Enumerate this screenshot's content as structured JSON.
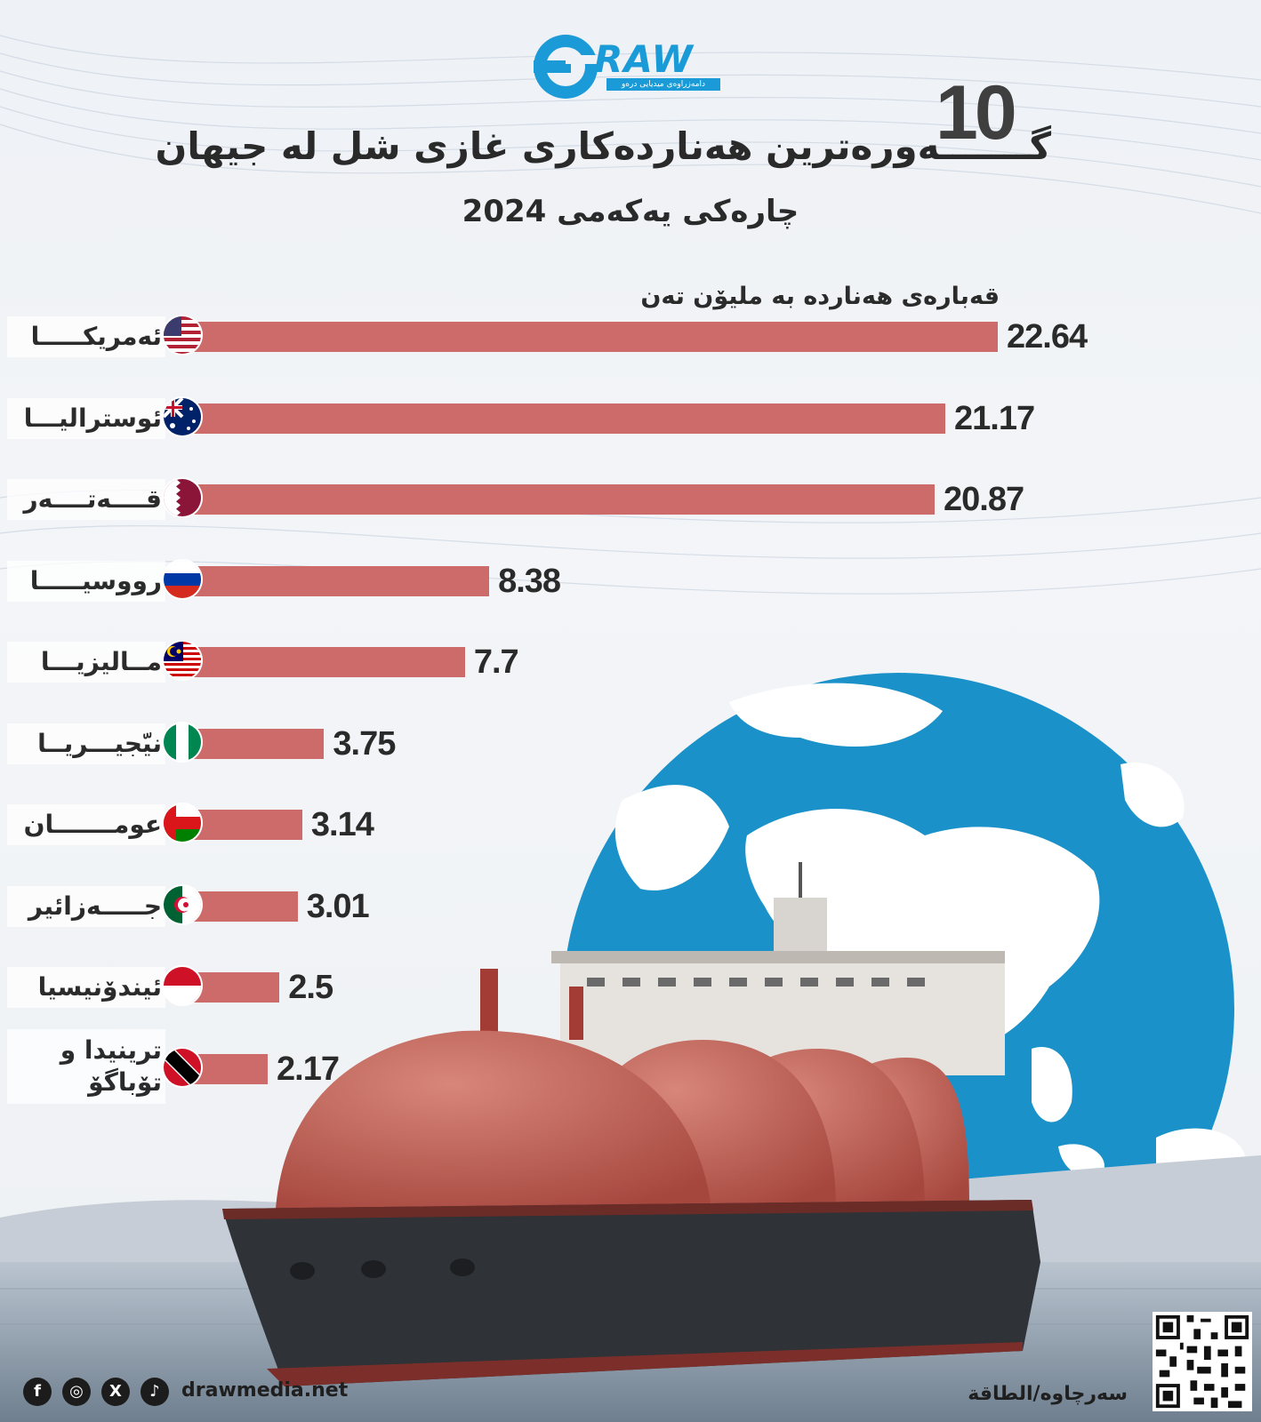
{
  "header": {
    "logo_text": "RAW",
    "logo_sub": "دامەزراوەی میدیایی درەو",
    "title_number": "10",
    "title": "گـــــــەورەترین هەناردەکاری غازی شل لە جیهان",
    "subtitle": "چارەکی یەکەمی 2024"
  },
  "chart_data": {
    "type": "bar",
    "orientation": "horizontal",
    "unit_label": "قەبارەی هەناردە بە ملیۆن تەن",
    "categories": [
      "ئەمریکـــــا",
      "ئوستراليـــا",
      "قــــەتــــەر",
      "رووسيـــــا",
      "مــاليزيـــا",
      "نيّجيـــريــا",
      "عومـــــــان",
      "جـــــەزائير",
      "ئيندۆنيسيا",
      "ترينيدا و تۆباگۆ"
    ],
    "flags": [
      "us-flag",
      "australia-flag",
      "qatar-flag",
      "russia-flag",
      "malaysia-flag",
      "nigeria-flag",
      "oman-flag",
      "algeria-flag",
      "indonesia-flag",
      "trinidad-tobago-flag"
    ],
    "values": [
      22.64,
      21.17,
      20.87,
      8.38,
      7.7,
      3.75,
      3.14,
      3.01,
      2.5,
      2.17
    ],
    "value_labels": [
      "22.64",
      "21.17",
      "20.87",
      "8.38",
      "7.7",
      "3.75",
      "3.14",
      "3.01",
      "2.5",
      "2.17"
    ],
    "bar_color": "#cd6b6b"
  },
  "footer": {
    "social": [
      "f",
      "◎",
      "X",
      "♪"
    ],
    "social_icons": [
      "facebook-icon",
      "instagram-icon",
      "x-icon",
      "tiktok-icon"
    ],
    "website": "drawmedia.net",
    "source": "سەرچاوە/الطاقة"
  },
  "colors": {
    "brand": "#1a9bd7",
    "globe": "#1a92c9",
    "ship_hull": "#2f3236"
  }
}
